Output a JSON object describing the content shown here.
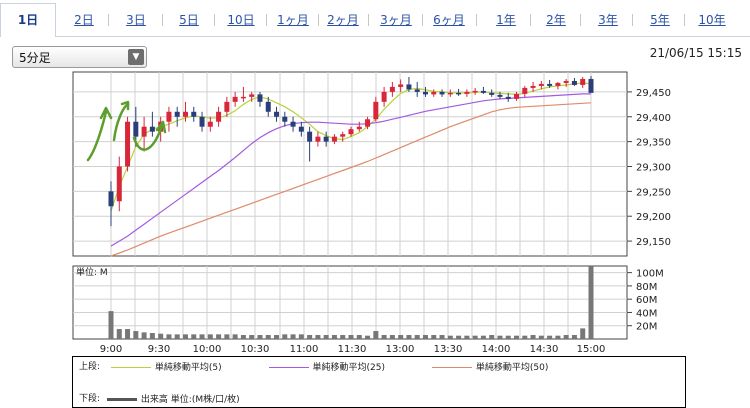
{
  "tabs": [
    {
      "label": "1日",
      "active": true
    },
    {
      "label": "2日"
    },
    {
      "label": "3日"
    },
    {
      "label": "5日"
    },
    {
      "label": "10日"
    },
    {
      "label": "1ヶ月"
    },
    {
      "label": "2ヶ月"
    },
    {
      "label": "3ヶ月"
    },
    {
      "label": "6ヶ月"
    },
    {
      "label": "1年"
    },
    {
      "label": "2年"
    },
    {
      "label": "3年"
    },
    {
      "label": "5年"
    },
    {
      "label": "10年"
    }
  ],
  "interval_select": {
    "value": "5分足",
    "icon": "chevron-down-icon"
  },
  "timestamp": "21/06/15 15:15",
  "colors": {
    "up": "#d8263a",
    "down": "#2a3f7a",
    "ma5": "#b9d23c",
    "ma25": "#a35ae0",
    "ma50": "#e08a6a",
    "volume": "#777777",
    "annotation": "#5c9e2c"
  },
  "chart_data": [
    {
      "type": "candlestick",
      "title": "",
      "x_ticks": [
        "9:00",
        "9:30",
        "10:00",
        "10:30",
        "11:00",
        "11:30",
        "13:00",
        "13:30",
        "14:00",
        "14:30",
        "15:00"
      ],
      "y_ticks": [
        "29,450",
        "29,400",
        "29,350",
        "29,300",
        "29,250",
        "29,200",
        "29,150"
      ],
      "ylim": [
        29120,
        29490
      ],
      "grid": true,
      "candles_ohlc": [
        [
          29250,
          29270,
          29180,
          29220
        ],
        [
          29230,
          29320,
          29210,
          29300
        ],
        [
          29300,
          29400,
          29290,
          29390
        ],
        [
          29390,
          29420,
          29340,
          29360
        ],
        [
          29360,
          29400,
          29330,
          29380
        ],
        [
          29380,
          29410,
          29360,
          29370
        ],
        [
          29370,
          29400,
          29350,
          29390
        ],
        [
          29390,
          29420,
          29370,
          29410
        ],
        [
          29410,
          29420,
          29380,
          29400
        ],
        [
          29400,
          29430,
          29390,
          29410
        ],
        [
          29410,
          29420,
          29390,
          29400
        ],
        [
          29400,
          29410,
          29370,
          29380
        ],
        [
          29380,
          29400,
          29370,
          29390
        ],
        [
          29390,
          29420,
          29380,
          29410
        ],
        [
          29410,
          29440,
          29400,
          29430
        ],
        [
          29430,
          29450,
          29420,
          29440
        ],
        [
          29440,
          29460,
          29430,
          29440
        ],
        [
          29440,
          29450,
          29430,
          29445
        ],
        [
          29445,
          29450,
          29420,
          29430
        ],
        [
          29430,
          29440,
          29400,
          29410
        ],
        [
          29410,
          29420,
          29390,
          29400
        ],
        [
          29400,
          29410,
          29380,
          29390
        ],
        [
          29390,
          29400,
          29370,
          29380
        ],
        [
          29380,
          29390,
          29360,
          29370
        ],
        [
          29370,
          29380,
          29310,
          29350
        ],
        [
          29350,
          29370,
          29340,
          29360
        ],
        [
          29360,
          29370,
          29340,
          29350
        ],
        [
          29350,
          29365,
          29345,
          29360
        ],
        [
          29360,
          29370,
          29350,
          29365
        ],
        [
          29365,
          29380,
          29360,
          29375
        ],
        [
          29375,
          29390,
          29370,
          29380
        ],
        [
          29380,
          29400,
          29375,
          29395
        ],
        [
          29395,
          29440,
          29390,
          29430
        ],
        [
          29430,
          29460,
          29420,
          29450
        ],
        [
          29450,
          29470,
          29440,
          29460
        ],
        [
          29460,
          29475,
          29450,
          29465
        ],
        [
          29465,
          29480,
          29450,
          29455
        ],
        [
          29455,
          29470,
          29440,
          29450
        ],
        [
          29450,
          29460,
          29440,
          29445
        ],
        [
          29445,
          29455,
          29440,
          29450
        ],
        [
          29450,
          29455,
          29440,
          29445
        ],
        [
          29445,
          29455,
          29440,
          29448
        ],
        [
          29448,
          29456,
          29442,
          29446
        ],
        [
          29446,
          29455,
          29440,
          29450
        ],
        [
          29450,
          29458,
          29444,
          29452
        ],
        [
          29452,
          29460,
          29446,
          29448
        ],
        [
          29448,
          29455,
          29440,
          29444
        ],
        [
          29444,
          29450,
          29436,
          29440
        ],
        [
          29440,
          29448,
          29430,
          29436
        ],
        [
          29436,
          29450,
          29432,
          29446
        ],
        [
          29446,
          29462,
          29440,
          29458
        ],
        [
          29458,
          29470,
          29450,
          29462
        ],
        [
          29462,
          29472,
          29455,
          29466
        ],
        [
          29466,
          29474,
          29458,
          29462
        ],
        [
          29462,
          29470,
          29455,
          29468
        ],
        [
          29468,
          29476,
          29460,
          29472
        ],
        [
          29472,
          29478,
          29462,
          29464
        ],
        [
          29464,
          29480,
          29458,
          29476
        ],
        [
          29476,
          29482,
          29452,
          29448
        ]
      ],
      "series": [
        {
          "name": "単純移動平均(5)",
          "values": [
            29210,
            29260,
            29300,
            29340,
            29365,
            29375,
            29380,
            29385,
            29392,
            29398,
            29402,
            29400,
            29397,
            29398,
            29403,
            29412,
            29425,
            29435,
            29440,
            29436,
            29428,
            29420,
            29410,
            29398,
            29385,
            29370,
            29362,
            29356,
            29354,
            29360,
            29368,
            29380,
            29395,
            29415,
            29432,
            29447,
            29455,
            29457,
            29454,
            29451,
            29450,
            29448,
            29448,
            29448,
            29449,
            29450,
            29448,
            29447,
            29446,
            29445,
            29447,
            29452,
            29456,
            29460,
            29462,
            29464,
            29466,
            29468,
            29466
          ]
        },
        {
          "name": "単純移動平均(25)",
          "values": [
            29140,
            29150,
            29160,
            29172,
            29184,
            29196,
            29208,
            29220,
            29232,
            29244,
            29256,
            29268,
            29280,
            29292,
            29305,
            29318,
            29332,
            29346,
            29358,
            29368,
            29376,
            29382,
            29386,
            29388,
            29389,
            29389,
            29388,
            29387,
            29386,
            29385,
            29385,
            29386,
            29388,
            29391,
            29395,
            29399,
            29403,
            29407,
            29411,
            29414,
            29417,
            29420,
            29423,
            29426,
            29429,
            29432,
            29434,
            29436,
            29437,
            29438,
            29439,
            29440,
            29441,
            29442,
            29443,
            29444,
            29445,
            29446,
            29446
          ]
        },
        {
          "name": "単純移動平均(50)",
          "values": [
            29120,
            29126,
            29132,
            29139,
            29146,
            29153,
            29160,
            29166,
            29172,
            29178,
            29184,
            29190,
            29196,
            29202,
            29208,
            29214,
            29220,
            29226,
            29232,
            29238,
            29244,
            29250,
            29256,
            29262,
            29268,
            29274,
            29280,
            29286,
            29292,
            29298,
            29304,
            29310,
            29317,
            29324,
            29331,
            29338,
            29345,
            29352,
            29359,
            29366,
            29373,
            29380,
            29386,
            29392,
            29398,
            29404,
            29410,
            29414,
            29417,
            29419,
            29420,
            29421,
            29422,
            29423,
            29424,
            29425,
            29426,
            29427,
            29428
          ]
        }
      ]
    },
    {
      "type": "bar",
      "title": "",
      "unit_label": "単位: M",
      "y_ticks": [
        "100M",
        "80M",
        "60M",
        "40M",
        "20M"
      ],
      "ylim": [
        0,
        110
      ],
      "values": [
        42,
        15,
        15,
        12,
        10,
        9,
        8,
        7,
        7,
        7,
        7,
        7,
        7,
        7,
        7,
        7,
        6,
        6,
        6,
        6,
        6,
        7,
        7,
        7,
        6,
        6,
        6,
        6,
        6,
        6,
        6,
        5,
        12,
        6,
        6,
        6,
        6,
        6,
        6,
        6,
        6,
        5,
        5,
        5,
        5,
        5,
        6,
        5,
        5,
        5,
        5,
        6,
        5,
        5,
        5,
        6,
        6,
        16,
        110
      ]
    }
  ],
  "legend": {
    "upper_label": "上段:",
    "lower_label": "下段:",
    "items": [
      {
        "label": "単純移動平均(5)",
        "color": "#b9d23c"
      },
      {
        "label": "単純移動平均(25)",
        "color": "#a35ae0"
      },
      {
        "label": "単純移動平均(50)",
        "color": "#e08a6a"
      }
    ],
    "volume_label": "出来高 単位:(M株/口/枚)"
  }
}
